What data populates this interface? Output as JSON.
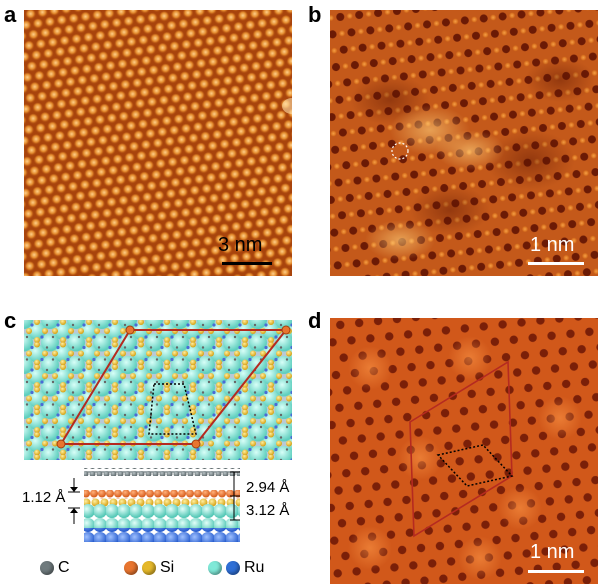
{
  "panels": {
    "a": {
      "letter": "a",
      "scale_label": "3 nm"
    },
    "b": {
      "letter": "b",
      "scale_label": "1 nm"
    },
    "c": {
      "letter": "c",
      "dims": {
        "top_gap": "2.94 Å",
        "left_gap": "1.12 Å",
        "bottom_gap": "3.12 Å"
      },
      "legend": [
        {
          "label": "C",
          "color": "#6f7a7d"
        },
        {
          "label": "Si",
          "color": "#e8752f",
          "color2": "#e5b82a"
        },
        {
          "label": "Ru",
          "color": "#7fe9d8",
          "color2": "#2f6fd6"
        }
      ]
    },
    "d": {
      "letter": "d",
      "scale_label": "1 nm"
    }
  },
  "colors": {
    "stm_orange": "#c65a12",
    "stm_bright": "#f0a24a",
    "stm_dark": "#7a1f08",
    "cell_red": "#b52a20"
  }
}
